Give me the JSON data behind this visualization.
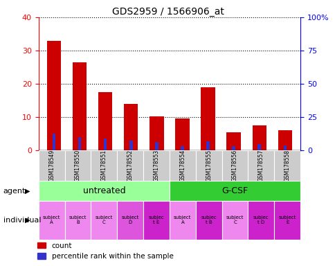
{
  "title": "GDS2959 / 1566906_at",
  "samples": [
    "GSM178549",
    "GSM178550",
    "GSM178551",
    "GSM178552",
    "GSM178553",
    "GSM178554",
    "GSM178555",
    "GSM178556",
    "GSM178557",
    "GSM178558"
  ],
  "count_values": [
    33,
    26.5,
    17.5,
    14,
    10.3,
    9.5,
    19,
    5.5,
    7.5,
    6.0
  ],
  "percentile_values": [
    12.5,
    10,
    9,
    7.5,
    6.0,
    3.0,
    7.0,
    3.0,
    4.5,
    3.5
  ],
  "ylim_left": [
    0,
    40
  ],
  "ylim_right": [
    0,
    100
  ],
  "yticks_left": [
    0,
    10,
    20,
    30,
    40
  ],
  "ytick_labels_right": [
    "0",
    "25",
    "50",
    "75",
    "100%"
  ],
  "bar_color_red": "#cc0000",
  "bar_color_blue": "#3333cc",
  "agent_groups": [
    {
      "label": "untreated",
      "start": 0,
      "end": 5,
      "color": "#99ff99"
    },
    {
      "label": "G-CSF",
      "start": 5,
      "end": 10,
      "color": "#33cc33"
    }
  ],
  "individual_labels": [
    "subject\nA",
    "subject\nB",
    "subject\nC",
    "subject\nD",
    "subjec\nt E",
    "subject\nA",
    "subjec\nt B",
    "subject\nC",
    "subjec\nt D",
    "subject\nE"
  ],
  "individual_colors": [
    "#ee88ee",
    "#ee88ee",
    "#ee88ee",
    "#dd55dd",
    "#cc22cc",
    "#ee88ee",
    "#cc22cc",
    "#ee88ee",
    "#cc22cc",
    "#cc22cc"
  ],
  "bar_width": 0.55,
  "legend_count": "count",
  "legend_percentile": "percentile rank within the sample"
}
